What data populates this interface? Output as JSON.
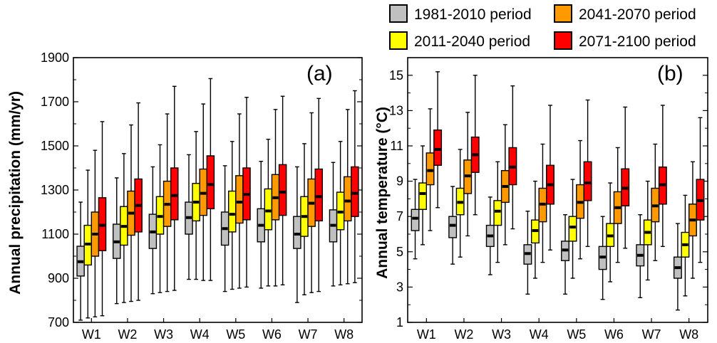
{
  "legend": [
    {
      "label": "1981-2010 period",
      "color": "#c0c0c0"
    },
    {
      "label": "2011-2040 period",
      "color": "#ffff00"
    },
    {
      "label": "2041-2070 period",
      "color": "#ff9900"
    },
    {
      "label": "2071-2100 period",
      "color": "#ff0000"
    }
  ],
  "chart_data": [
    {
      "type": "box",
      "panel_label": "(a)",
      "ylabel": "Annual precipitation (mm/yr)",
      "ylim": [
        700,
        1900
      ],
      "yticks": [
        700,
        900,
        1100,
        1300,
        1500,
        1700,
        1900
      ],
      "categories": [
        "W1",
        "W2",
        "W3",
        "W4",
        "W5",
        "W6",
        "W7",
        "W8"
      ],
      "series": [
        {
          "name": "1981-2010 period",
          "color": "#c0c0c0",
          "boxes": [
            {
              "min": 710,
              "q1": 910,
              "median": 975,
              "q3": 1045,
              "max": 1245
            },
            {
              "min": 785,
              "q1": 990,
              "median": 1065,
              "q3": 1145,
              "max": 1355
            },
            {
              "min": 830,
              "q1": 1035,
              "median": 1110,
              "q3": 1190,
              "max": 1405
            },
            {
              "min": 895,
              "q1": 1100,
              "median": 1175,
              "q3": 1245,
              "max": 1460
            },
            {
              "min": 840,
              "q1": 1050,
              "median": 1125,
              "q3": 1200,
              "max": 1410
            },
            {
              "min": 855,
              "q1": 1065,
              "median": 1140,
              "q3": 1215,
              "max": 1430
            },
            {
              "min": 790,
              "q1": 1035,
              "median": 1100,
              "q3": 1180,
              "max": 1405
            },
            {
              "min": 865,
              "q1": 1065,
              "median": 1140,
              "q3": 1210,
              "max": 1425
            }
          ]
        },
        {
          "name": "2011-2040 period",
          "color": "#ffff00",
          "boxes": [
            {
              "min": 720,
              "q1": 960,
              "median": 1055,
              "q3": 1140,
              "max": 1390
            },
            {
              "min": 790,
              "q1": 1050,
              "median": 1135,
              "q3": 1225,
              "max": 1465
            },
            {
              "min": 835,
              "q1": 1100,
              "median": 1180,
              "q3": 1270,
              "max": 1505
            },
            {
              "min": 895,
              "q1": 1160,
              "median": 1245,
              "q3": 1330,
              "max": 1565
            },
            {
              "min": 850,
              "q1": 1110,
              "median": 1190,
              "q3": 1295,
              "max": 1520
            },
            {
              "min": 865,
              "q1": 1120,
              "median": 1205,
              "q3": 1305,
              "max": 1530
            },
            {
              "min": 825,
              "q1": 1090,
              "median": 1180,
              "q3": 1270,
              "max": 1510
            },
            {
              "min": 870,
              "q1": 1120,
              "median": 1200,
              "q3": 1290,
              "max": 1520
            }
          ]
        },
        {
          "name": "2041-2070 period",
          "color": "#ff9900",
          "boxes": [
            {
              "min": 725,
              "q1": 1000,
              "median": 1100,
              "q3": 1200,
              "max": 1480
            },
            {
              "min": 795,
              "q1": 1095,
              "median": 1195,
              "q3": 1295,
              "max": 1595
            },
            {
              "min": 840,
              "q1": 1135,
              "median": 1235,
              "q3": 1340,
              "max": 1645
            },
            {
              "min": 890,
              "q1": 1185,
              "median": 1285,
              "q3": 1395,
              "max": 1690
            },
            {
              "min": 855,
              "q1": 1150,
              "median": 1245,
              "q3": 1365,
              "max": 1645
            },
            {
              "min": 865,
              "q1": 1165,
              "median": 1265,
              "q3": 1370,
              "max": 1665
            },
            {
              "min": 835,
              "q1": 1135,
              "median": 1240,
              "q3": 1350,
              "max": 1650
            },
            {
              "min": 875,
              "q1": 1160,
              "median": 1250,
              "q3": 1360,
              "max": 1665
            }
          ]
        },
        {
          "name": "2071-2100 period",
          "color": "#ff0000",
          "boxes": [
            {
              "min": 730,
              "q1": 1025,
              "median": 1140,
              "q3": 1265,
              "max": 1610
            },
            {
              "min": 800,
              "q1": 1110,
              "median": 1230,
              "q3": 1350,
              "max": 1695
            },
            {
              "min": 845,
              "q1": 1165,
              "median": 1275,
              "q3": 1400,
              "max": 1770
            },
            {
              "min": 890,
              "q1": 1215,
              "median": 1325,
              "q3": 1455,
              "max": 1805
            },
            {
              "min": 860,
              "q1": 1165,
              "median": 1280,
              "q3": 1400,
              "max": 1720
            },
            {
              "min": 870,
              "q1": 1185,
              "median": 1290,
              "q3": 1415,
              "max": 1725
            },
            {
              "min": 840,
              "q1": 1160,
              "median": 1270,
              "q3": 1395,
              "max": 1715
            },
            {
              "min": 880,
              "q1": 1180,
              "median": 1285,
              "q3": 1405,
              "max": 1750
            }
          ]
        }
      ]
    },
    {
      "type": "box",
      "panel_label": "(b)",
      "ylabel": "Annual temperature (°C)",
      "ylim": [
        1,
        16
      ],
      "yticks": [
        1,
        3,
        5,
        7,
        9,
        11,
        13,
        15
      ],
      "categories": [
        "W1",
        "W2",
        "W3",
        "W4",
        "W5",
        "W6",
        "W7",
        "W8"
      ],
      "series": [
        {
          "name": "1981-2010 period",
          "color": "#c0c0c0",
          "boxes": [
            {
              "min": 4.6,
              "q1": 6.2,
              "median": 6.9,
              "q3": 7.4,
              "max": 9.1
            },
            {
              "min": 4.3,
              "q1": 5.8,
              "median": 6.5,
              "q3": 7.0,
              "max": 8.7
            },
            {
              "min": 3.7,
              "q1": 5.3,
              "median": 5.9,
              "q3": 6.5,
              "max": 8.1
            },
            {
              "min": 2.6,
              "q1": 4.3,
              "median": 4.9,
              "q3": 5.4,
              "max": 7.3
            },
            {
              "min": 2.6,
              "q1": 4.5,
              "median": 5.1,
              "q3": 5.6,
              "max": 7.1
            },
            {
              "min": 2.3,
              "q1": 4.0,
              "median": 4.7,
              "q3": 5.3,
              "max": 7.0
            },
            {
              "min": 2.4,
              "q1": 4.2,
              "median": 4.8,
              "q3": 5.4,
              "max": 7.1
            },
            {
              "min": 1.7,
              "q1": 3.5,
              "median": 4.1,
              "q3": 4.7,
              "max": 6.6
            }
          ]
        },
        {
          "name": "2011-2040 period",
          "color": "#ffff00",
          "boxes": [
            {
              "min": 5.4,
              "q1": 7.4,
              "median": 8.3,
              "q3": 8.9,
              "max": 11.0
            },
            {
              "min": 4.7,
              "q1": 7.1,
              "median": 7.8,
              "q3": 8.6,
              "max": 10.8
            },
            {
              "min": 4.4,
              "q1": 6.5,
              "median": 7.3,
              "q3": 7.9,
              "max": 10.1
            },
            {
              "min": 3.5,
              "q1": 5.5,
              "median": 6.2,
              "q3": 6.8,
              "max": 9.0
            },
            {
              "min": 3.5,
              "q1": 5.6,
              "median": 6.4,
              "q3": 7.0,
              "max": 9.1
            },
            {
              "min": 3.3,
              "q1": 5.3,
              "median": 5.9,
              "q3": 6.6,
              "max": 8.9
            },
            {
              "min": 3.4,
              "q1": 5.4,
              "median": 6.1,
              "q3": 6.8,
              "max": 9.0
            },
            {
              "min": 2.5,
              "q1": 4.7,
              "median": 5.4,
              "q3": 6.1,
              "max": 8.2
            }
          ]
        },
        {
          "name": "2041-2070 period",
          "color": "#ff9900",
          "boxes": [
            {
              "min": 6.2,
              "q1": 8.8,
              "median": 9.6,
              "q3": 10.6,
              "max": 13.1
            },
            {
              "min": 5.9,
              "q1": 8.3,
              "median": 9.3,
              "q3": 10.2,
              "max": 12.9
            },
            {
              "min": 5.4,
              "q1": 7.8,
              "median": 8.7,
              "q3": 9.6,
              "max": 12.2
            },
            {
              "min": 4.4,
              "q1": 6.7,
              "median": 7.7,
              "q3": 8.6,
              "max": 11.1
            },
            {
              "min": 4.6,
              "q1": 6.9,
              "median": 7.8,
              "q3": 8.8,
              "max": 11.3
            },
            {
              "min": 4.4,
              "q1": 6.6,
              "median": 7.5,
              "q3": 8.4,
              "max": 10.9
            },
            {
              "min": 4.5,
              "q1": 6.7,
              "median": 7.6,
              "q3": 8.6,
              "max": 11.1
            },
            {
              "min": 3.5,
              "q1": 5.9,
              "median": 6.8,
              "q3": 7.7,
              "max": 10.1
            }
          ]
        },
        {
          "name": "2071-2100 period",
          "color": "#ff0000",
          "boxes": [
            {
              "min": 7.5,
              "q1": 9.9,
              "median": 10.8,
              "q3": 11.9,
              "max": 15.2
            },
            {
              "min": 7.1,
              "q1": 9.5,
              "median": 10.5,
              "q3": 11.5,
              "max": 15.0
            },
            {
              "min": 6.3,
              "q1": 8.8,
              "median": 9.8,
              "q3": 10.9,
              "max": 14.4
            },
            {
              "min": 5.1,
              "q1": 7.7,
              "median": 8.8,
              "q3": 9.9,
              "max": 13.3
            },
            {
              "min": 5.3,
              "q1": 7.9,
              "median": 8.9,
              "q3": 10.1,
              "max": 13.6
            },
            {
              "min": 5.2,
              "q1": 7.6,
              "median": 8.6,
              "q3": 9.7,
              "max": 13.2
            },
            {
              "min": 5.3,
              "q1": 7.7,
              "median": 8.8,
              "q3": 9.8,
              "max": 13.3
            },
            {
              "min": 4.4,
              "q1": 6.8,
              "median": 7.9,
              "q3": 9.1,
              "max": 12.6
            }
          ]
        }
      ]
    }
  ]
}
